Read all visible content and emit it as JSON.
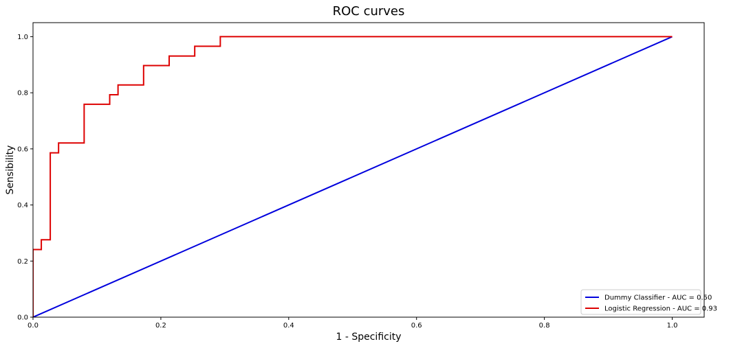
{
  "chart_data": {
    "type": "line",
    "title": "ROC curves",
    "xlabel": "1 - Specificity",
    "ylabel": "Sensibility",
    "xlim": [
      0,
      1.05
    ],
    "ylim": [
      0,
      1.05
    ],
    "xticks": [
      0.0,
      0.2,
      0.4,
      0.6,
      0.8,
      1.0
    ],
    "xtick_labels": [
      "0.0",
      "0.2",
      "0.4",
      "0.6",
      "0.8",
      "1.0"
    ],
    "yticks": [
      0.0,
      0.2,
      0.4,
      0.6,
      0.8,
      1.0
    ],
    "ytick_labels": [
      "0.0",
      "0.2",
      "0.4",
      "0.6",
      "0.8",
      "1.0"
    ],
    "grid": false,
    "legend_position": "lower-right",
    "series": [
      {
        "name": "Dummy Classifier - AUC = 0.50",
        "color": "#0000dd",
        "x": [
          0.0,
          1.0
        ],
        "y": [
          0.0,
          1.0
        ]
      },
      {
        "name": "Logistic Regression - AUC = 0.93",
        "color": "#dd0000",
        "x": [
          0.0,
          0.0,
          0.013,
          0.013,
          0.027,
          0.027,
          0.04,
          0.04,
          0.08,
          0.08,
          0.12,
          0.12,
          0.133,
          0.133,
          0.173,
          0.173,
          0.213,
          0.213,
          0.253,
          0.253,
          0.293,
          0.293,
          1.0
        ],
        "y": [
          0.0,
          0.241,
          0.241,
          0.276,
          0.276,
          0.586,
          0.586,
          0.621,
          0.621,
          0.759,
          0.759,
          0.793,
          0.793,
          0.828,
          0.828,
          0.897,
          0.897,
          0.931,
          0.931,
          0.966,
          0.966,
          1.0,
          1.0
        ]
      }
    ]
  }
}
